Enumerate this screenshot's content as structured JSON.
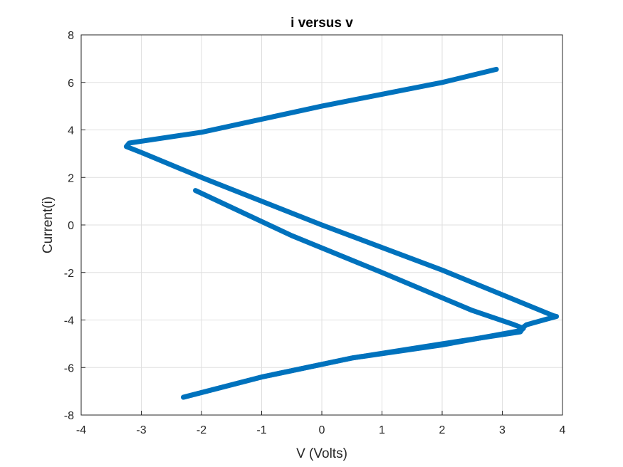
{
  "chart_data": {
    "type": "line",
    "title": "i versus v",
    "xlabel": "V (Volts)",
    "ylabel": "Current(i)",
    "xlim": [
      -4,
      4
    ],
    "ylim": [
      -8,
      8
    ],
    "xticks": [
      "-4",
      "-3",
      "-2",
      "-1",
      "0",
      "1",
      "2",
      "3",
      "4"
    ],
    "yticks": [
      "-8",
      "-6",
      "-4",
      "-2",
      "0",
      "2",
      "4",
      "6",
      "8"
    ],
    "grid": true,
    "colors": {
      "series": "#0072BD",
      "grid": "#DFDFDF",
      "axis": "#262626"
    },
    "series": [
      {
        "x": [
          -2.1,
          -0.5,
          1.0,
          2.5,
          3.2,
          3.35,
          3.3,
          2.0,
          0.5,
          -1.0,
          -2.3
        ],
        "y": [
          1.45,
          -0.45,
          -2.0,
          -3.6,
          -4.2,
          -4.35,
          -4.45,
          -5.05,
          -5.6,
          -6.4,
          -7.25
        ]
      },
      {
        "x": [
          -2.3,
          -1.0,
          0.5,
          2.0,
          3.3,
          3.35,
          3.4,
          3.9,
          3.85,
          2.0,
          0.0,
          -2.0,
          -3.0,
          -3.25,
          -3.2,
          -2.0,
          0.0,
          1.0,
          2.0,
          2.9
        ],
        "y": [
          -7.25,
          -6.4,
          -5.6,
          -5.0,
          -4.5,
          -4.3,
          -4.2,
          -3.85,
          -3.82,
          -1.9,
          0.0,
          2.0,
          3.05,
          3.3,
          3.45,
          3.9,
          5.0,
          5.5,
          6.0,
          6.55
        ]
      }
    ]
  }
}
